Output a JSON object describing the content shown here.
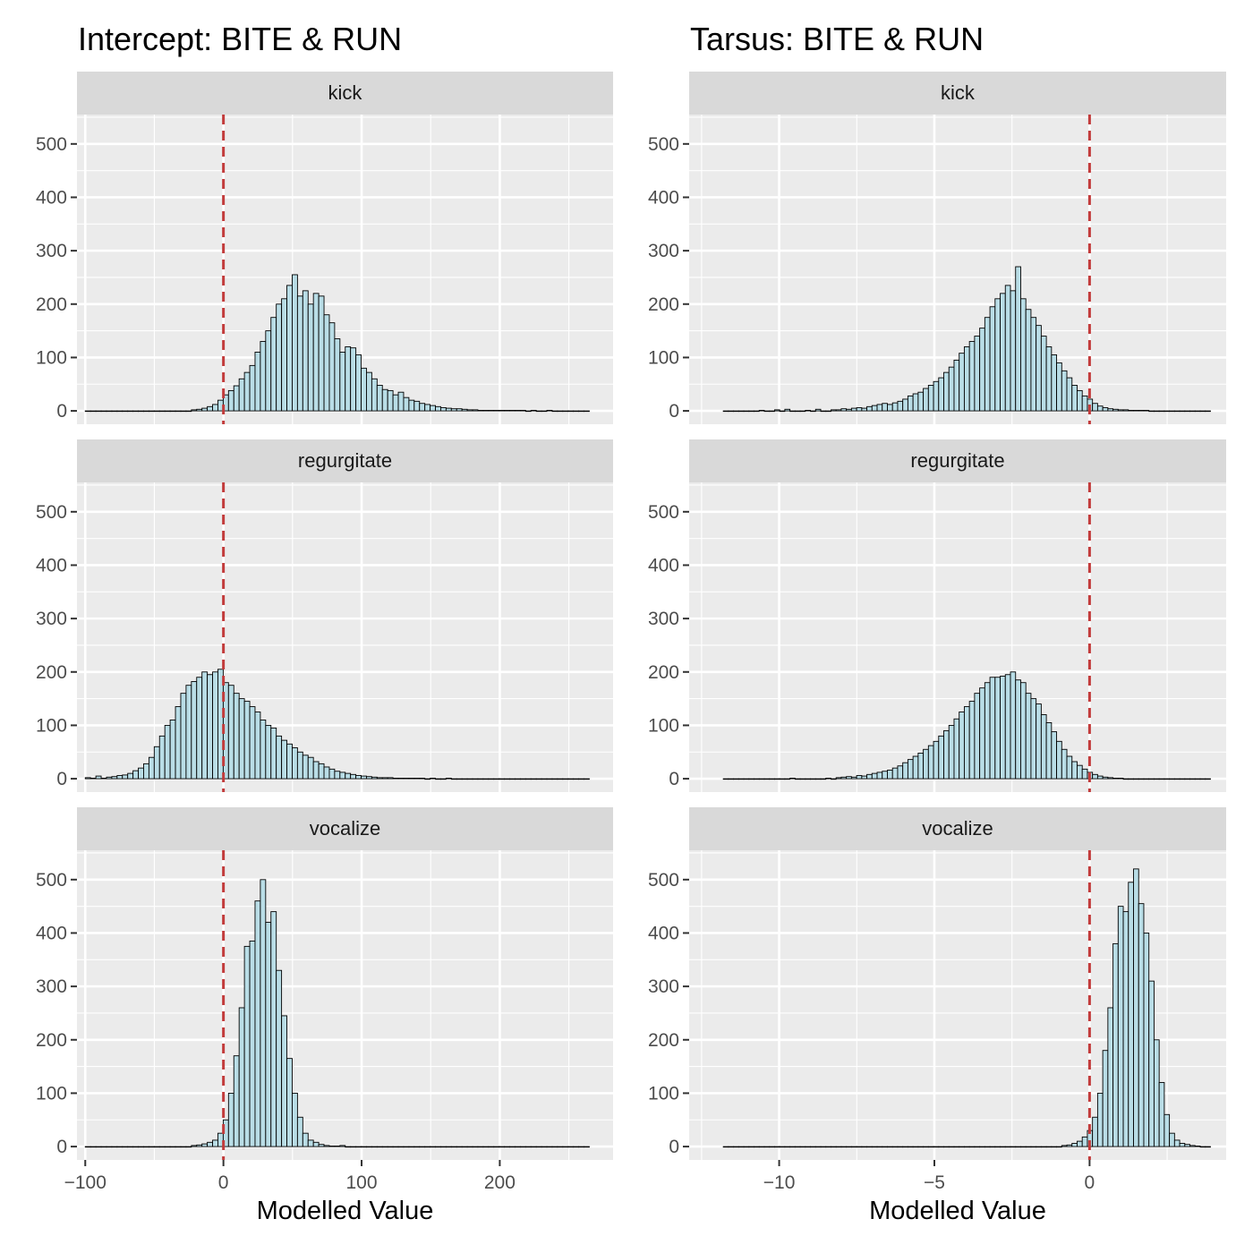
{
  "chart_data": [
    {
      "type": "bar",
      "title": "Intercept: BITE & RUN",
      "xlabel": "Modelled Value",
      "ylabel": "",
      "xlim": [
        -106,
        282
      ],
      "ylim": [
        -25,
        555
      ],
      "x_ticks": [
        -100,
        0,
        100,
        200
      ],
      "x_tick_labels": [
        "−100",
        "0",
        "100",
        "200"
      ],
      "y_ticks": [
        0,
        100,
        200,
        300,
        400,
        500
      ],
      "y_tick_labels": [
        "0",
        "100",
        "200",
        "300",
        "400",
        "500"
      ],
      "reference_line": {
        "x": 0,
        "style": "dashed",
        "color": "#c23b3b"
      },
      "bar_fill": "#b9dde6",
      "bar_outline": "#000000",
      "grid": true,
      "facets": [
        {
          "label": "kick",
          "bins": {
            "start": -100,
            "width": 3.84,
            "count": 95
          },
          "counts": [
            0,
            0,
            0,
            0,
            0,
            0,
            0,
            0,
            0,
            0,
            0,
            0,
            0,
            0,
            0,
            0,
            0,
            0,
            0,
            0,
            2,
            3,
            5,
            8,
            12,
            20,
            30,
            38,
            47,
            60,
            72,
            85,
            110,
            130,
            150,
            175,
            200,
            210,
            235,
            255,
            215,
            225,
            200,
            220,
            215,
            180,
            165,
            135,
            110,
            120,
            118,
            105,
            80,
            72,
            60,
            48,
            40,
            38,
            30,
            35,
            25,
            20,
            18,
            14,
            12,
            10,
            8,
            6,
            5,
            4,
            4,
            3,
            2,
            2,
            1,
            1,
            1,
            1,
            1,
            1,
            1,
            1,
            1,
            0,
            1,
            0,
            0,
            1,
            0,
            0,
            0,
            0,
            0,
            0,
            0
          ]
        },
        {
          "label": "regurgitate",
          "bins": {
            "start": -100,
            "width": 3.84,
            "count": 95
          },
          "counts": [
            2,
            1,
            5,
            1,
            3,
            4,
            6,
            7,
            10,
            15,
            20,
            28,
            40,
            60,
            80,
            100,
            110,
            135,
            160,
            175,
            182,
            190,
            200,
            195,
            200,
            205,
            180,
            175,
            160,
            150,
            145,
            135,
            125,
            110,
            100,
            95,
            80,
            72,
            65,
            58,
            50,
            44,
            40,
            32,
            28,
            22,
            18,
            14,
            12,
            10,
            8,
            6,
            5,
            4,
            3,
            2,
            2,
            2,
            1,
            1,
            1,
            1,
            1,
            1,
            0,
            1,
            0,
            0,
            1,
            0,
            0,
            0,
            0,
            0,
            0,
            0,
            0,
            0,
            0,
            0,
            0,
            0,
            0,
            0,
            0,
            0,
            0,
            0,
            0,
            0,
            0,
            0,
            0,
            0,
            0
          ]
        },
        {
          "label": "vocalize",
          "bins": {
            "start": -100,
            "width": 3.84,
            "count": 95
          },
          "counts": [
            0,
            0,
            0,
            0,
            0,
            0,
            0,
            0,
            0,
            0,
            0,
            0,
            0,
            0,
            0,
            0,
            0,
            0,
            0,
            0,
            2,
            3,
            5,
            8,
            12,
            25,
            50,
            100,
            170,
            260,
            375,
            385,
            460,
            500,
            420,
            440,
            330,
            245,
            165,
            100,
            55,
            25,
            12,
            8,
            4,
            2,
            1,
            1,
            2,
            0,
            0,
            0,
            0,
            0,
            0,
            0,
            0,
            0,
            0,
            0,
            0,
            0,
            0,
            0,
            0,
            0,
            0,
            0,
            0,
            0,
            0,
            0,
            0,
            0,
            0,
            0,
            0,
            0,
            0,
            0,
            0,
            0,
            0,
            0,
            0,
            0,
            0,
            0,
            0,
            0,
            0,
            0,
            0,
            0,
            0
          ]
        }
      ]
    },
    {
      "type": "bar",
      "title": "Tarsus: BITE & RUN",
      "xlabel": "Modelled Value",
      "ylabel": "",
      "xlim": [
        -12.9,
        4.4
      ],
      "ylim": [
        -25,
        555
      ],
      "x_ticks": [
        -10,
        -5,
        0
      ],
      "x_tick_labels": [
        "−10",
        "−5",
        "0"
      ],
      "y_ticks": [
        0,
        100,
        200,
        300,
        400,
        500
      ],
      "y_tick_labels": [
        "0",
        "100",
        "200",
        "300",
        "400",
        "500"
      ],
      "reference_line": {
        "x": 0,
        "style": "dashed",
        "color": "#c23b3b"
      },
      "bar_fill": "#b9dde6",
      "bar_outline": "#000000",
      "grid": true,
      "facets": [
        {
          "label": "kick",
          "bins": {
            "start": -11.8,
            "width": 0.1652,
            "count": 95
          },
          "counts": [
            0,
            0,
            0,
            0,
            0,
            0,
            0,
            1,
            0,
            0,
            2,
            0,
            3,
            0,
            0,
            0,
            1,
            0,
            3,
            0,
            0,
            2,
            2,
            4,
            3,
            5,
            6,
            5,
            8,
            10,
            12,
            14,
            12,
            15,
            18,
            22,
            28,
            32,
            35,
            42,
            48,
            55,
            62,
            72,
            82,
            95,
            108,
            120,
            130,
            140,
            155,
            175,
            195,
            210,
            220,
            235,
            225,
            270,
            210,
            190,
            175,
            160,
            140,
            120,
            105,
            90,
            75,
            62,
            48,
            38,
            28,
            22,
            14,
            9,
            6,
            4,
            3,
            2,
            2,
            1,
            1,
            1,
            1,
            0,
            0,
            0,
            0,
            0,
            0,
            0,
            0,
            0,
            0,
            0,
            0
          ]
        },
        {
          "label": "regurgitate",
          "bins": {
            "start": -11.8,
            "width": 0.1652,
            "count": 95
          },
          "counts": [
            0,
            0,
            0,
            0,
            0,
            0,
            0,
            0,
            0,
            0,
            0,
            0,
            0,
            1,
            0,
            0,
            0,
            0,
            0,
            0,
            1,
            0,
            2,
            3,
            4,
            3,
            6,
            5,
            8,
            10,
            12,
            14,
            16,
            20,
            24,
            30,
            36,
            42,
            48,
            55,
            62,
            70,
            80,
            90,
            100,
            112,
            125,
            135,
            145,
            160,
            170,
            180,
            190,
            190,
            192,
            195,
            200,
            185,
            180,
            160,
            150,
            140,
            120,
            105,
            88,
            70,
            55,
            42,
            32,
            25,
            18,
            12,
            8,
            5,
            3,
            2,
            1,
            1,
            0,
            0,
            0,
            0,
            0,
            0,
            0,
            0,
            0,
            0,
            0,
            0,
            0,
            0,
            0,
            0,
            0
          ]
        },
        {
          "label": "vocalize",
          "bins": {
            "start": -11.8,
            "width": 0.1652,
            "count": 95
          },
          "counts": [
            0,
            0,
            0,
            0,
            0,
            0,
            0,
            0,
            0,
            0,
            0,
            0,
            0,
            0,
            0,
            0,
            0,
            0,
            0,
            0,
            0,
            0,
            0,
            0,
            0,
            0,
            0,
            0,
            0,
            0,
            0,
            0,
            0,
            0,
            0,
            0,
            0,
            0,
            0,
            0,
            0,
            0,
            0,
            0,
            0,
            0,
            0,
            0,
            0,
            0,
            0,
            0,
            0,
            0,
            0,
            0,
            0,
            0,
            0,
            0,
            0,
            0,
            0,
            0,
            0,
            0,
            2,
            3,
            6,
            10,
            18,
            30,
            55,
            100,
            180,
            260,
            380,
            450,
            440,
            495,
            520,
            455,
            400,
            310,
            200,
            120,
            60,
            25,
            12,
            6,
            4,
            2,
            1,
            0,
            0
          ]
        }
      ]
    }
  ]
}
